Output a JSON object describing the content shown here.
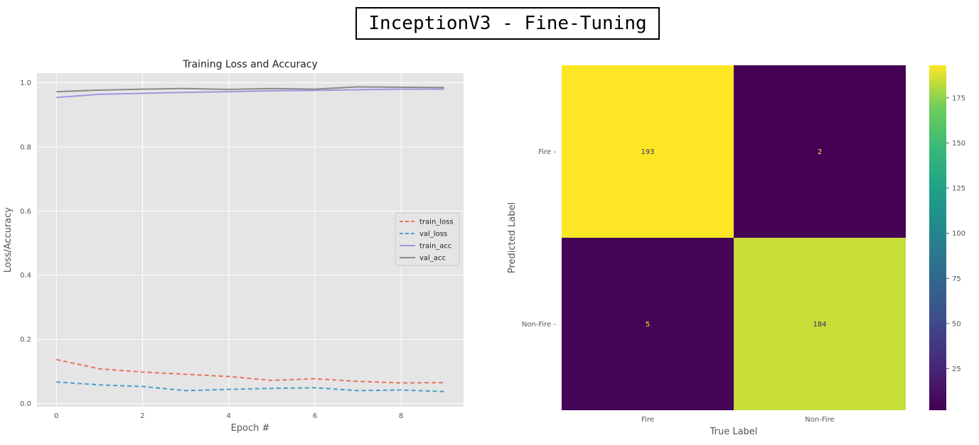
{
  "figure": {
    "title": "InceptionV3 - Fine-Tuning"
  },
  "chart_data": [
    {
      "type": "line",
      "title": "Training Loss and Accuracy",
      "xlabel": "Epoch #",
      "ylabel": "Loss/Accuracy",
      "xlim": [
        -0.45,
        9.45
      ],
      "ylim": [
        -0.01,
        1.03
      ],
      "x_ticks": [
        0,
        2,
        4,
        6,
        8
      ],
      "y_ticks": [
        0.0,
        0.2,
        0.4,
        0.6,
        0.8,
        1.0
      ],
      "grid": true,
      "legend_position": "center-right",
      "x": [
        0,
        1,
        2,
        3,
        4,
        5,
        6,
        7,
        8,
        9
      ],
      "series": [
        {
          "name": "train_loss",
          "color": "#e8735b",
          "dash": true,
          "values": [
            0.137,
            0.108,
            0.098,
            0.091,
            0.084,
            0.072,
            0.077,
            0.069,
            0.064,
            0.065
          ]
        },
        {
          "name": "val_loss",
          "color": "#4a9ec9",
          "dash": true,
          "values": [
            0.067,
            0.058,
            0.053,
            0.04,
            0.044,
            0.047,
            0.049,
            0.04,
            0.042,
            0.037
          ]
        },
        {
          "name": "train_acc",
          "color": "#9c98e0",
          "dash": false,
          "values": [
            0.954,
            0.964,
            0.967,
            0.97,
            0.972,
            0.975,
            0.976,
            0.978,
            0.98,
            0.98
          ]
        },
        {
          "name": "val_acc",
          "color": "#8a8a8a",
          "dash": false,
          "values": [
            0.972,
            0.977,
            0.98,
            0.982,
            0.979,
            0.982,
            0.98,
            0.987,
            0.986,
            0.985
          ]
        }
      ]
    },
    {
      "type": "heatmap",
      "xlabel": "True Label",
      "ylabel": "Predicted Label",
      "x_categories": [
        "Fire",
        "Non-Fire"
      ],
      "y_categories": [
        "Fire",
        "Non-Fire"
      ],
      "values": [
        [
          193,
          2
        ],
        [
          5,
          184
        ]
      ],
      "colormap": "viridis",
      "colorbar": {
        "min": 2,
        "max": 193,
        "ticks": [
          25,
          50,
          75,
          100,
          125,
          150,
          175
        ]
      }
    }
  ]
}
